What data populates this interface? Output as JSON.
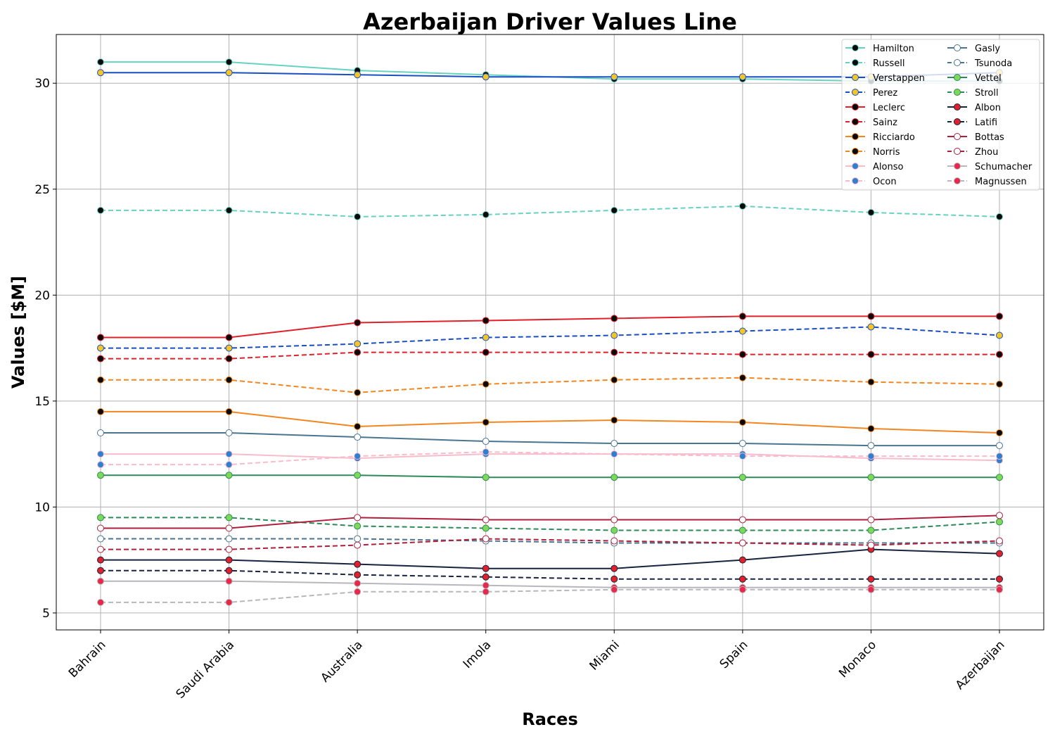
{
  "chart_data": {
    "type": "line",
    "title": "Azerbaijan Driver Values Line",
    "xlabel": "Races",
    "ylabel": "Values [$M]",
    "categories": [
      "Bahrain",
      "Saudi Arabia",
      "Australia",
      "Imola",
      "Miami",
      "Spain",
      "Monaco",
      "Azerbaijan"
    ],
    "ylim": [
      4.2,
      32.3
    ],
    "yticks": [
      5,
      10,
      15,
      20,
      25,
      30
    ],
    "grid": true,
    "legend_position": "top-right",
    "series": [
      {
        "name": "Hamilton",
        "color": "#66d3c0",
        "dash": "solid",
        "marker_fill": "#0a0a0a",
        "marker_edge": "#66d3c0",
        "values": [
          31.0,
          31.0,
          30.6,
          30.4,
          30.2,
          30.2,
          30.1,
          30.1
        ]
      },
      {
        "name": "Russell",
        "color": "#66d3c0",
        "dash": "dashed",
        "marker_fill": "#0a0a0a",
        "marker_edge": "#66d3c0",
        "values": [
          24.0,
          24.0,
          23.7,
          23.8,
          24.0,
          24.2,
          23.9,
          23.7
        ]
      },
      {
        "name": "Verstappen",
        "color": "#1a4fc4",
        "dash": "solid",
        "marker_fill": "#f3c526",
        "marker_edge": "#1a4fc4",
        "values": [
          30.5,
          30.5,
          30.4,
          30.3,
          30.3,
          30.3,
          30.3,
          30.5
        ]
      },
      {
        "name": "Perez",
        "color": "#1a4fc4",
        "dash": "dashed",
        "marker_fill": "#f3c526",
        "marker_edge": "#1a4fc4",
        "values": [
          17.5,
          17.5,
          17.7,
          18.0,
          18.1,
          18.3,
          18.5,
          18.1
        ]
      },
      {
        "name": "Leclerc",
        "color": "#e0202a",
        "dash": "solid",
        "marker_fill": "#0a0a0a",
        "marker_edge": "#e0202a",
        "values": [
          18.0,
          18.0,
          18.7,
          18.8,
          18.9,
          19.0,
          19.0,
          19.0
        ]
      },
      {
        "name": "Sainz",
        "color": "#e0202a",
        "dash": "dashed",
        "marker_fill": "#0a0a0a",
        "marker_edge": "#e0202a",
        "values": [
          17.0,
          17.0,
          17.3,
          17.3,
          17.3,
          17.2,
          17.2,
          17.2
        ]
      },
      {
        "name": "Ricciardo",
        "color": "#f5861f",
        "dash": "solid",
        "marker_fill": "#0a0a0a",
        "marker_edge": "#f5861f",
        "values": [
          14.5,
          14.5,
          13.8,
          14.0,
          14.1,
          14.0,
          13.7,
          13.5
        ]
      },
      {
        "name": "Norris",
        "color": "#f5861f",
        "dash": "dashed",
        "marker_fill": "#0a0a0a",
        "marker_edge": "#f5861f",
        "values": [
          16.0,
          16.0,
          15.4,
          15.8,
          16.0,
          16.1,
          15.9,
          15.8
        ]
      },
      {
        "name": "Alonso",
        "color": "#f8bccb",
        "dash": "solid",
        "marker_fill": "#2f7fd0",
        "marker_edge": "#f8bccb",
        "values": [
          12.5,
          12.5,
          12.3,
          12.5,
          12.5,
          12.5,
          12.3,
          12.2
        ]
      },
      {
        "name": "Ocon",
        "color": "#f8bccb",
        "dash": "dashed",
        "marker_fill": "#2f7fd0",
        "marker_edge": "#f8bccb",
        "values": [
          12.0,
          12.0,
          12.4,
          12.6,
          12.5,
          12.4,
          12.4,
          12.4
        ]
      },
      {
        "name": "Gasly",
        "color": "#4a7590",
        "dash": "solid",
        "marker_fill": "#ffffff",
        "marker_edge": "#4a7590",
        "values": [
          13.5,
          13.5,
          13.3,
          13.1,
          13.0,
          13.0,
          12.9,
          12.9
        ]
      },
      {
        "name": "Tsunoda",
        "color": "#4a7590",
        "dash": "dashed",
        "marker_fill": "#ffffff",
        "marker_edge": "#4a7590",
        "values": [
          8.5,
          8.5,
          8.5,
          8.4,
          8.3,
          8.3,
          8.3,
          8.3
        ]
      },
      {
        "name": "Vettel",
        "color": "#2d8a5a",
        "dash": "solid",
        "marker_fill": "#7ed957",
        "marker_edge": "#2d8a5a",
        "values": [
          11.5,
          11.5,
          11.5,
          11.4,
          11.4,
          11.4,
          11.4,
          11.4
        ]
      },
      {
        "name": "Stroll",
        "color": "#2d8a5a",
        "dash": "dashed",
        "marker_fill": "#7ed957",
        "marker_edge": "#2d8a5a",
        "values": [
          9.5,
          9.5,
          9.1,
          9.0,
          8.9,
          8.9,
          8.9,
          9.3
        ]
      },
      {
        "name": "Albon",
        "color": "#17233f",
        "dash": "solid",
        "marker_fill": "#e0202a",
        "marker_edge": "#17233f",
        "values": [
          7.5,
          7.5,
          7.3,
          7.1,
          7.1,
          7.5,
          8.0,
          7.8
        ]
      },
      {
        "name": "Latifi",
        "color": "#17233f",
        "dash": "dashed",
        "marker_fill": "#e0202a",
        "marker_edge": "#17233f",
        "values": [
          7.0,
          7.0,
          6.8,
          6.7,
          6.6,
          6.6,
          6.6,
          6.6
        ]
      },
      {
        "name": "Bottas",
        "color": "#b01e3c",
        "dash": "solid",
        "marker_fill": "#ffffff",
        "marker_edge": "#b01e3c",
        "values": [
          9.0,
          9.0,
          9.5,
          9.4,
          9.4,
          9.4,
          9.4,
          9.6
        ]
      },
      {
        "name": "Zhou",
        "color": "#b01e3c",
        "dash": "dashed",
        "marker_fill": "#ffffff",
        "marker_edge": "#b01e3c",
        "values": [
          8.0,
          8.0,
          8.2,
          8.5,
          8.4,
          8.3,
          8.2,
          8.4
        ]
      },
      {
        "name": "Schumacher",
        "color": "#b7b7bc",
        "dash": "solid",
        "marker_fill": "#e8284a",
        "marker_edge": "#b7b7bc",
        "values": [
          6.5,
          6.5,
          6.4,
          6.3,
          6.2,
          6.2,
          6.2,
          6.2
        ]
      },
      {
        "name": "Magnussen",
        "color": "#b7b7bc",
        "dash": "dashed",
        "marker_fill": "#e8284a",
        "marker_edge": "#b7b7bc",
        "values": [
          5.5,
          5.5,
          6.0,
          6.0,
          6.1,
          6.1,
          6.1,
          6.1
        ]
      }
    ]
  }
}
